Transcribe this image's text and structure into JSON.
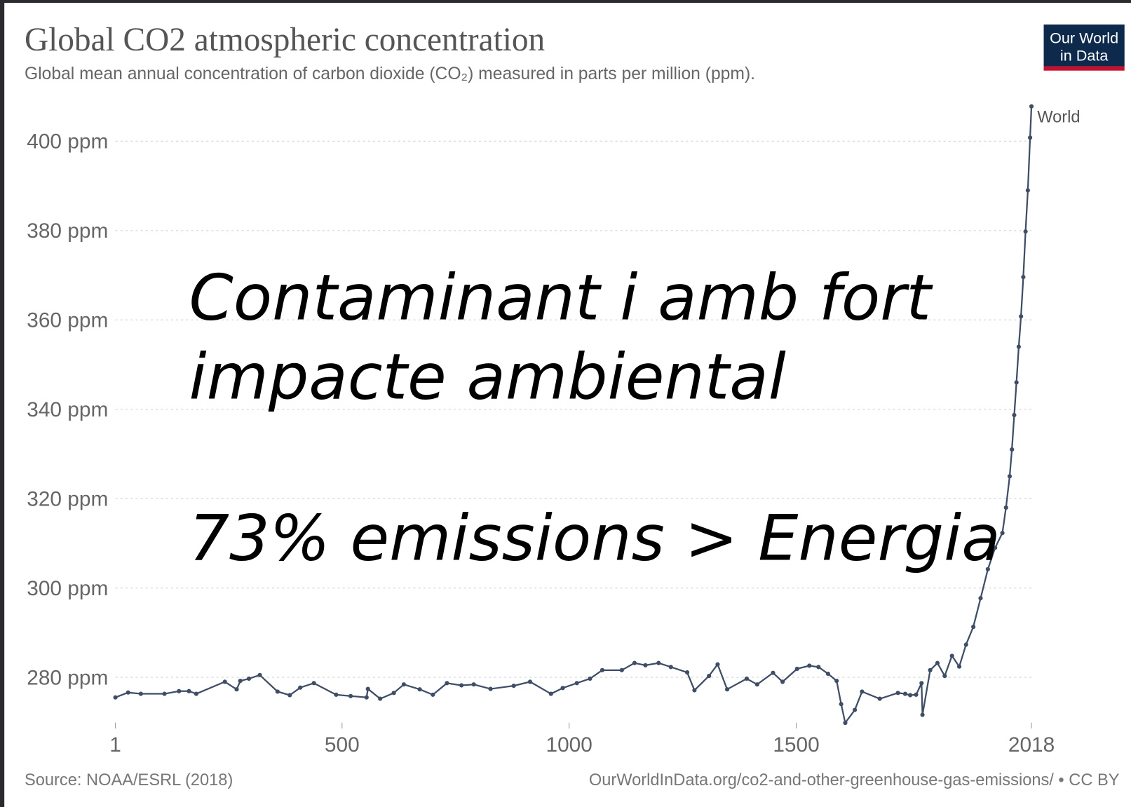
{
  "chart_data": {
    "type": "line",
    "title": "Global CO2 atmospheric concentration",
    "subtitle": "Global mean annual concentration of carbon dioxide (CO₂) measured in parts per million (ppm).",
    "logo": [
      "Our World",
      "in Data"
    ],
    "source": "Source: NOAA/ESRL (2018)",
    "url": "OurWorldInData.org/co2-and-other-greenhouse-gas-emissions/ • CC BY",
    "annotations": [
      "Contaminant i amb fort",
      "impacte ambiental",
      "73% emissions > Energia"
    ],
    "x": [
      1,
      29,
      57,
      109,
      141,
      163,
      179,
      242,
      268,
      276,
      295,
      319,
      358,
      385,
      408,
      438,
      487,
      519,
      554,
      557,
      584,
      614,
      636,
      671,
      700,
      731,
      763,
      790,
      827,
      878,
      914,
      960,
      986,
      1017,
      1046,
      1073,
      1116,
      1144,
      1168,
      1197,
      1224,
      1260,
      1276,
      1308,
      1327,
      1348,
      1391,
      1414,
      1449,
      1470,
      1502,
      1529,
      1549,
      1570,
      1589,
      1599,
      1608,
      1629,
      1645,
      1684,
      1724,
      1740,
      1751,
      1764,
      1776,
      1778,
      1795,
      1811,
      1827,
      1843,
      1859,
      1874,
      1890,
      1906,
      1922,
      1938,
      1954,
      1962,
      1970,
      1975,
      1980,
      1985,
      1990,
      1995,
      2000,
      2005,
      2010,
      2015,
      2018
    ],
    "series": [
      {
        "name": "World",
        "color": "#3f4d66",
        "values": [
          275.5,
          276.6,
          276.3,
          276.3,
          276.9,
          276.9,
          276.3,
          279.0,
          277.3,
          279.2,
          279.7,
          280.5,
          276.8,
          276.0,
          277.7,
          278.7,
          276.1,
          275.8,
          275.5,
          277.4,
          275.2,
          276.5,
          278.4,
          277.3,
          276.1,
          278.7,
          278.2,
          278.4,
          277.4,
          278.1,
          279.0,
          276.3,
          277.6,
          278.7,
          279.7,
          281.6,
          281.6,
          283.2,
          282.7,
          283.2,
          282.3,
          281.1,
          277.1,
          280.3,
          282.9,
          277.3,
          279.7,
          278.4,
          281.0,
          279.0,
          281.9,
          282.6,
          282.3,
          280.8,
          279.2,
          274.0,
          269.8,
          272.7,
          276.8,
          275.2,
          276.5,
          276.3,
          276.0,
          276.1,
          278.7,
          271.6,
          281.6,
          283.2,
          280.3,
          284.8,
          282.4,
          287.3,
          291.3,
          297.7,
          304.2,
          309.0,
          312.3,
          318.0,
          325.0,
          331.0,
          338.7,
          346.0,
          354.0,
          360.8,
          369.6,
          379.8,
          389.0,
          400.8,
          407.8
        ]
      }
    ],
    "xlim": [
      1,
      2018
    ],
    "xticks": [
      1,
      500,
      1000,
      1500,
      2018
    ],
    "ylim": [
      270,
      408
    ],
    "yticks": [
      {
        "value": 280,
        "label": "280 ppm"
      },
      {
        "value": 300,
        "label": "300 ppm"
      },
      {
        "value": 320,
        "label": "320 ppm"
      },
      {
        "value": 340,
        "label": "340 ppm"
      },
      {
        "value": 360,
        "label": "360 ppm"
      },
      {
        "value": 380,
        "label": "380 ppm"
      },
      {
        "value": 400,
        "label": "400 ppm"
      }
    ],
    "grid": true
  }
}
